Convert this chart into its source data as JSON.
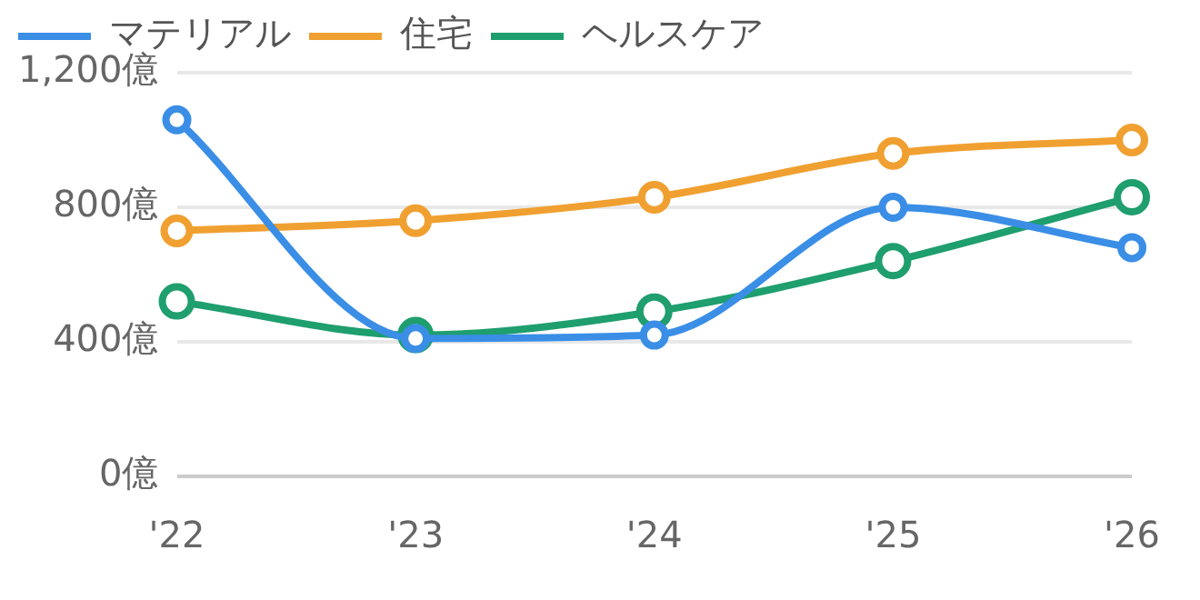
{
  "chart_data": {
    "type": "line",
    "categories": [
      "'22",
      "'23",
      "'24",
      "'25",
      "'26"
    ],
    "series": [
      {
        "name": "マテリアル",
        "color": "#3a8ee6",
        "values": [
          1060,
          410,
          420,
          800,
          680
        ]
      },
      {
        "name": "住宅",
        "color": "#f0a030",
        "values": [
          730,
          760,
          830,
          960,
          1000
        ]
      },
      {
        "name": "ヘルスケア",
        "color": "#1f9e6e",
        "values": [
          520,
          420,
          490,
          640,
          830
        ]
      }
    ],
    "ylim": [
      0,
      1200
    ],
    "yticks": [
      {
        "value": 0,
        "label": "0億"
      },
      {
        "value": 400,
        "label": "400億"
      },
      {
        "value": 800,
        "label": "800億"
      },
      {
        "value": 1200,
        "label": "1,200億"
      }
    ],
    "grid": "y",
    "legend": "top left",
    "marker": "circle",
    "line_style": "solid"
  }
}
